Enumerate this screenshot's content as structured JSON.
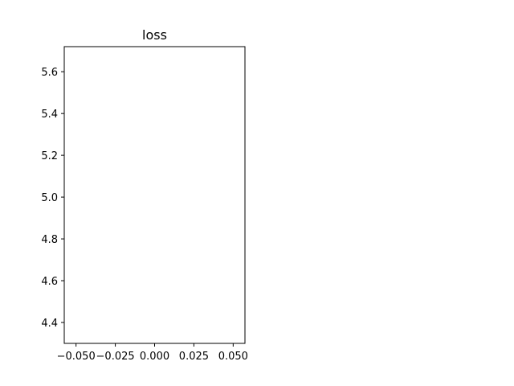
{
  "chart_data": {
    "type": "line",
    "title": "loss",
    "xlabel": "",
    "ylabel": "",
    "xlim": [
      -0.0575,
      0.0575
    ],
    "ylim": [
      4.3,
      5.72
    ],
    "xticks": [
      -0.05,
      -0.025,
      0.0,
      0.025,
      0.05
    ],
    "xtick_labels": [
      "−0.050",
      "−0.025",
      "0.000",
      "0.025",
      "0.050"
    ],
    "yticks": [
      4.4,
      4.6,
      4.8,
      5.0,
      5.2,
      5.4,
      5.6
    ],
    "ytick_labels": [
      "4.4",
      "4.6",
      "4.8",
      "5.0",
      "5.2",
      "5.4",
      "5.6"
    ],
    "series": [
      {
        "x": [],
        "y": []
      }
    ],
    "grid": false,
    "legend": "none"
  }
}
